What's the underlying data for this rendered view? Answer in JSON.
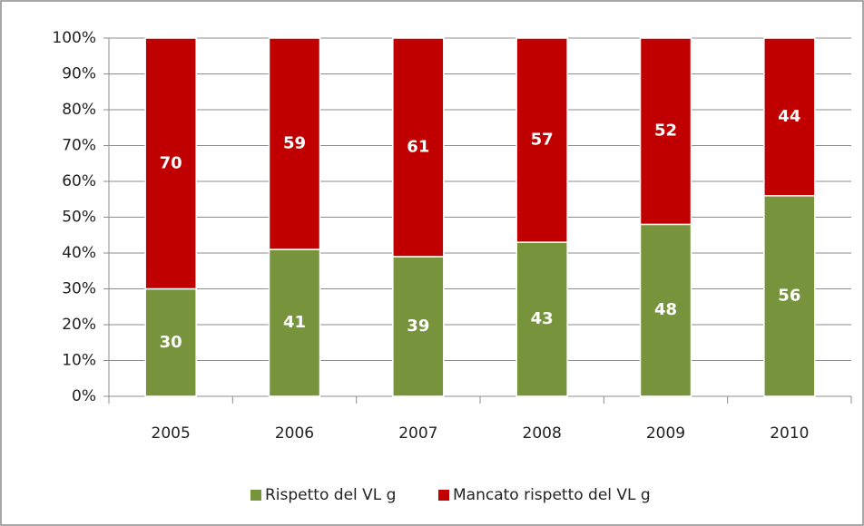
{
  "chart_data": {
    "type": "stacked_bar",
    "categories": [
      "2005",
      "2006",
      "2007",
      "2008",
      "2009",
      "2010"
    ],
    "series": [
      {
        "name": "Rispetto del VL g",
        "color": "#77933c",
        "values": [
          30,
          41,
          39,
          43,
          48,
          56
        ]
      },
      {
        "name": "Mancato rispetto del VL g",
        "color": "#c00000",
        "values": [
          70,
          59,
          61,
          57,
          52,
          44
        ]
      }
    ],
    "ylim": [
      0,
      100
    ],
    "yticks": [
      {
        "value": 0,
        "label": "0%"
      },
      {
        "value": 10,
        "label": "10%"
      },
      {
        "value": 20,
        "label": "20%"
      },
      {
        "value": 30,
        "label": "30%"
      },
      {
        "value": 40,
        "label": "40%"
      },
      {
        "value": 50,
        "label": "50%"
      },
      {
        "value": 60,
        "label": "60%"
      },
      {
        "value": 70,
        "label": "70%"
      },
      {
        "value": 80,
        "label": "80%"
      },
      {
        "value": 90,
        "label": "90%"
      },
      {
        "value": 100,
        "label": "100%"
      }
    ],
    "grid": true,
    "legend": "bottom"
  }
}
